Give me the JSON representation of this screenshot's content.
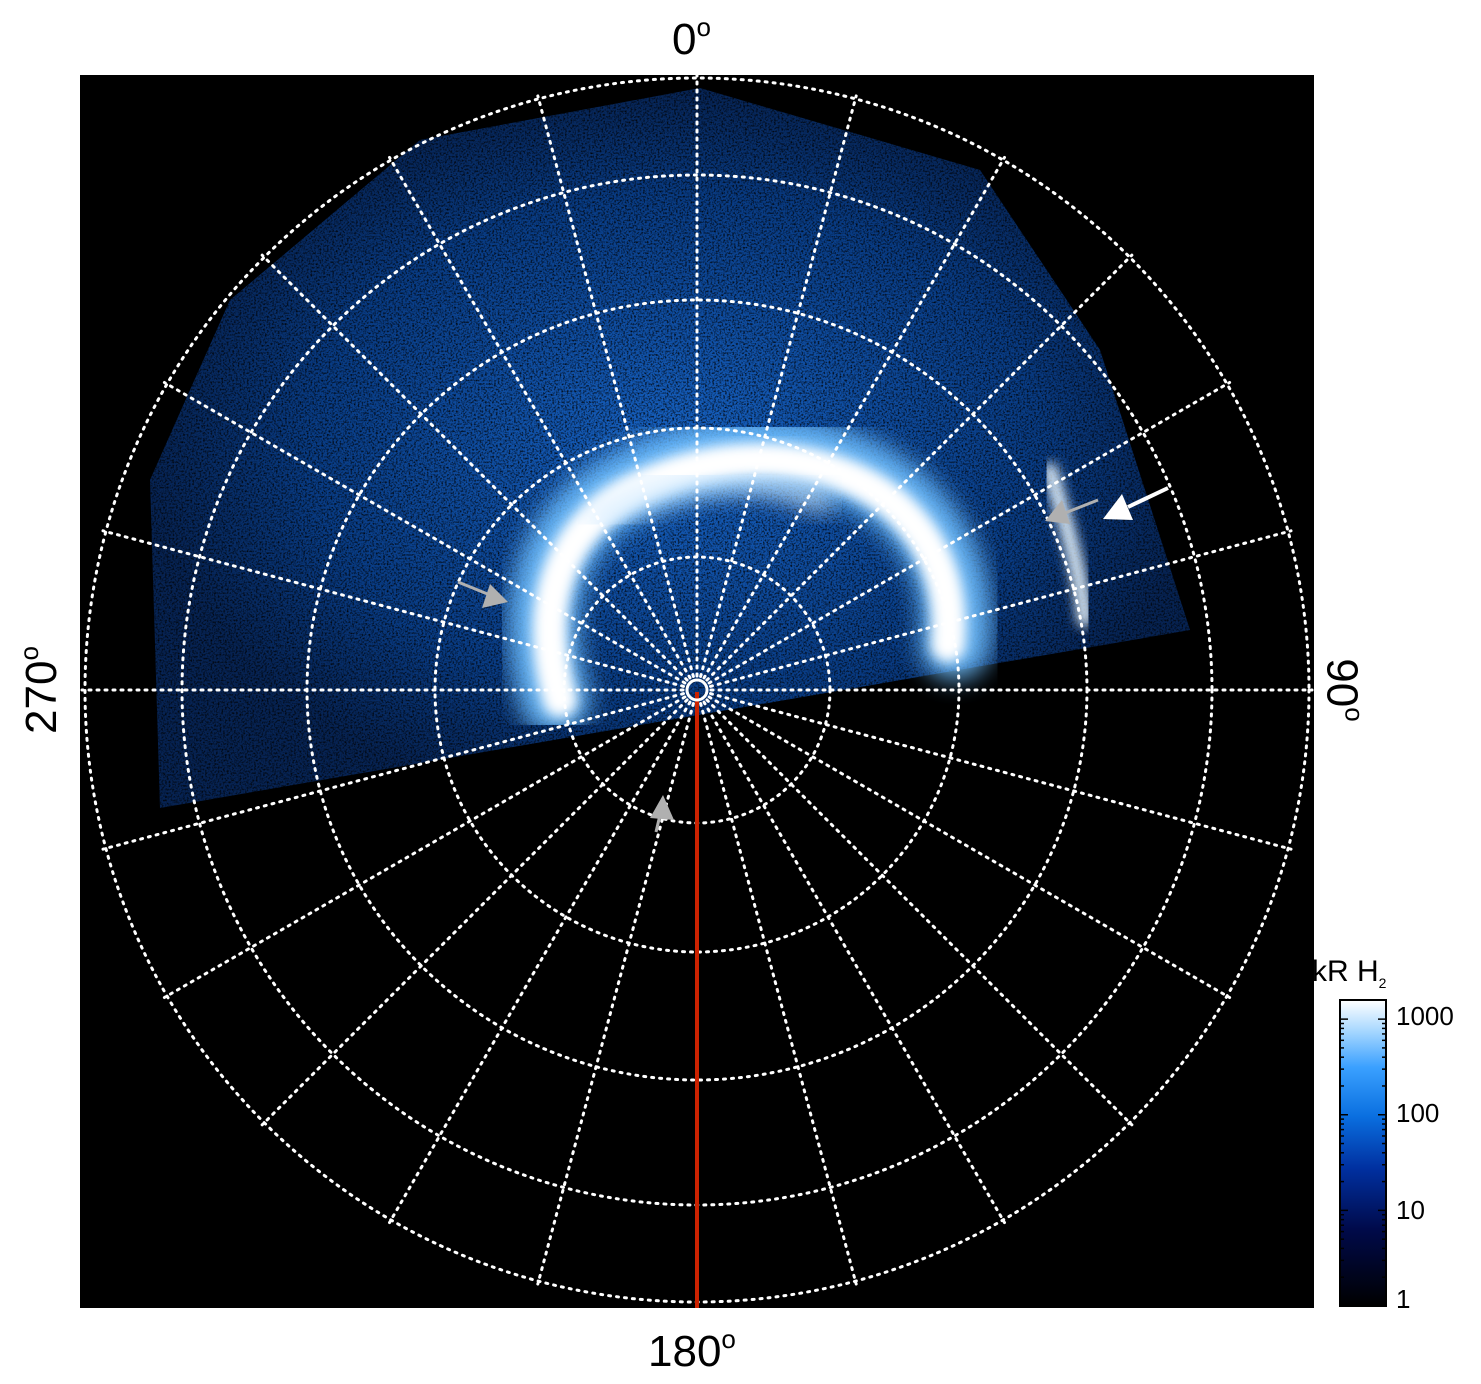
{
  "figure": {
    "direction_labels": {
      "top": "0",
      "right": "90",
      "bottom": "180",
      "left": "270",
      "degree_symbol": "o"
    },
    "colors": {
      "background": "#000000",
      "grid": "#ffffff",
      "meridian_line": "#cc2200",
      "arrow_white": "#ffffff",
      "arrow_gray": "#b0b0b0"
    },
    "icons": [
      "arrow-icon",
      "pole-marker-icon"
    ]
  },
  "colorbar": {
    "title_main": "kR H",
    "title_sub": "2",
    "tick_labels": [
      "1000",
      "100",
      "10",
      "1"
    ],
    "scale": "log",
    "colors": [
      "#000000",
      "#000a4a",
      "#0030a0",
      "#0a6fe0",
      "#3aa0ff",
      "#a8d8ff",
      "#ffffff"
    ]
  }
}
